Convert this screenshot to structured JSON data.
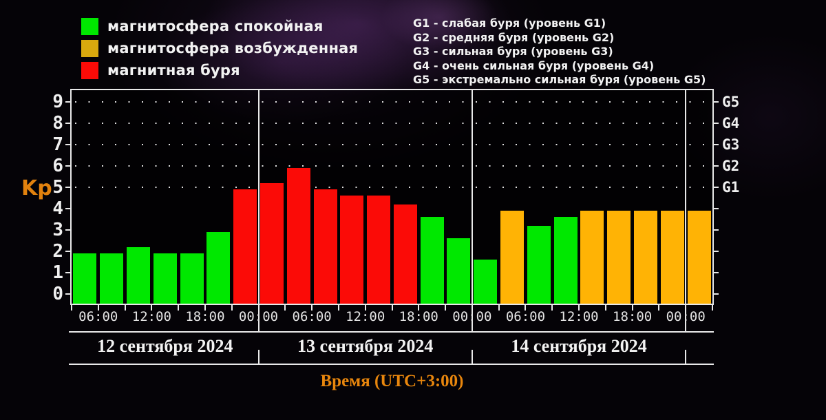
{
  "legend": {
    "items": [
      {
        "label": "магнитосфера спокойная",
        "status": "quiet"
      },
      {
        "label": "магнитосфера возбужденная",
        "status": "excited_legend"
      },
      {
        "label": "магнитная буря",
        "status": "storm"
      }
    ]
  },
  "storm_scale": {
    "lines": [
      "G1 - слабая буря (уровень G1)",
      "G2 - средняя буря (уровень G2)",
      "G3 - сильная буря (уровень G3)",
      "G4 - очень сильная буря (уровень G4)",
      "G5 - экстремально сильная буря (уровень G5)"
    ]
  },
  "chart_data": {
    "type": "bar",
    "title": "",
    "ylabel": "Kp",
    "xlabel": "Время (UTC+3:00)",
    "ylim": [
      0,
      9
    ],
    "yticks": [
      0,
      1,
      2,
      3,
      4,
      5,
      6,
      7,
      8,
      9
    ],
    "grid": "dotted horizontal rows at storm thresholds Kp 5-9",
    "legend_position": "top-left",
    "slot_hours": 3,
    "colors": {
      "quiet": "#00e800",
      "excited": "#ffb305",
      "excited_legend": "#d9a90e",
      "storm": "#fb0b07",
      "axis": "#e9e9e9",
      "accent_text": "#e8860d"
    },
    "g_levels": [
      {
        "label": "G1",
        "kp": 5
      },
      {
        "label": "G2",
        "kp": 6
      },
      {
        "label": "G3",
        "kp": 7
      },
      {
        "label": "G4",
        "kp": 8
      },
      {
        "label": "G5",
        "kp": 9
      }
    ],
    "days": [
      {
        "date": "12 сентября 2024",
        "start_slot": 0,
        "end_slot": 7
      },
      {
        "date": "13 сентября 2024",
        "start_slot": 7,
        "end_slot": 15
      },
      {
        "date": "14 сентября 2024",
        "start_slot": 15,
        "end_slot": 23
      }
    ],
    "day_separator_slots": [
      7,
      15,
      23
    ],
    "time_ticks": [
      {
        "slot": 1,
        "label": "06:00"
      },
      {
        "slot": 3,
        "label": "12:00"
      },
      {
        "slot": 5,
        "label": "18:00"
      },
      {
        "slot": 7,
        "label": "00:00"
      },
      {
        "slot": 9,
        "label": "06:00"
      },
      {
        "slot": 11,
        "label": "12:00"
      },
      {
        "slot": 13,
        "label": "18:00"
      },
      {
        "slot": 15,
        "label": "00:00"
      },
      {
        "slot": 17,
        "label": "06:00"
      },
      {
        "slot": 19,
        "label": "12:00"
      },
      {
        "slot": 21,
        "label": "18:00"
      },
      {
        "slot": 23,
        "label": "00:00"
      }
    ],
    "bars": [
      {
        "value": 2.0,
        "status": "quiet"
      },
      {
        "value": 2.0,
        "status": "quiet"
      },
      {
        "value": 2.3,
        "status": "quiet"
      },
      {
        "value": 2.0,
        "status": "quiet"
      },
      {
        "value": 2.0,
        "status": "quiet"
      },
      {
        "value": 3.0,
        "status": "quiet"
      },
      {
        "value": 5.0,
        "status": "storm"
      },
      {
        "value": 5.3,
        "status": "storm"
      },
      {
        "value": 6.0,
        "status": "storm"
      },
      {
        "value": 5.0,
        "status": "storm"
      },
      {
        "value": 4.7,
        "status": "storm"
      },
      {
        "value": 4.7,
        "status": "storm"
      },
      {
        "value": 4.3,
        "status": "storm"
      },
      {
        "value": 3.7,
        "status": "quiet"
      },
      {
        "value": 2.7,
        "status": "quiet"
      },
      {
        "value": 1.7,
        "status": "quiet"
      },
      {
        "value": 4.0,
        "status": "excited"
      },
      {
        "value": 3.3,
        "status": "quiet"
      },
      {
        "value": 3.7,
        "status": "quiet"
      },
      {
        "value": 4.0,
        "status": "excited"
      },
      {
        "value": 4.0,
        "status": "excited"
      },
      {
        "value": 4.0,
        "status": "excited"
      },
      {
        "value": 4.0,
        "status": "excited"
      },
      {
        "value": 4.0,
        "status": "excited"
      }
    ]
  }
}
